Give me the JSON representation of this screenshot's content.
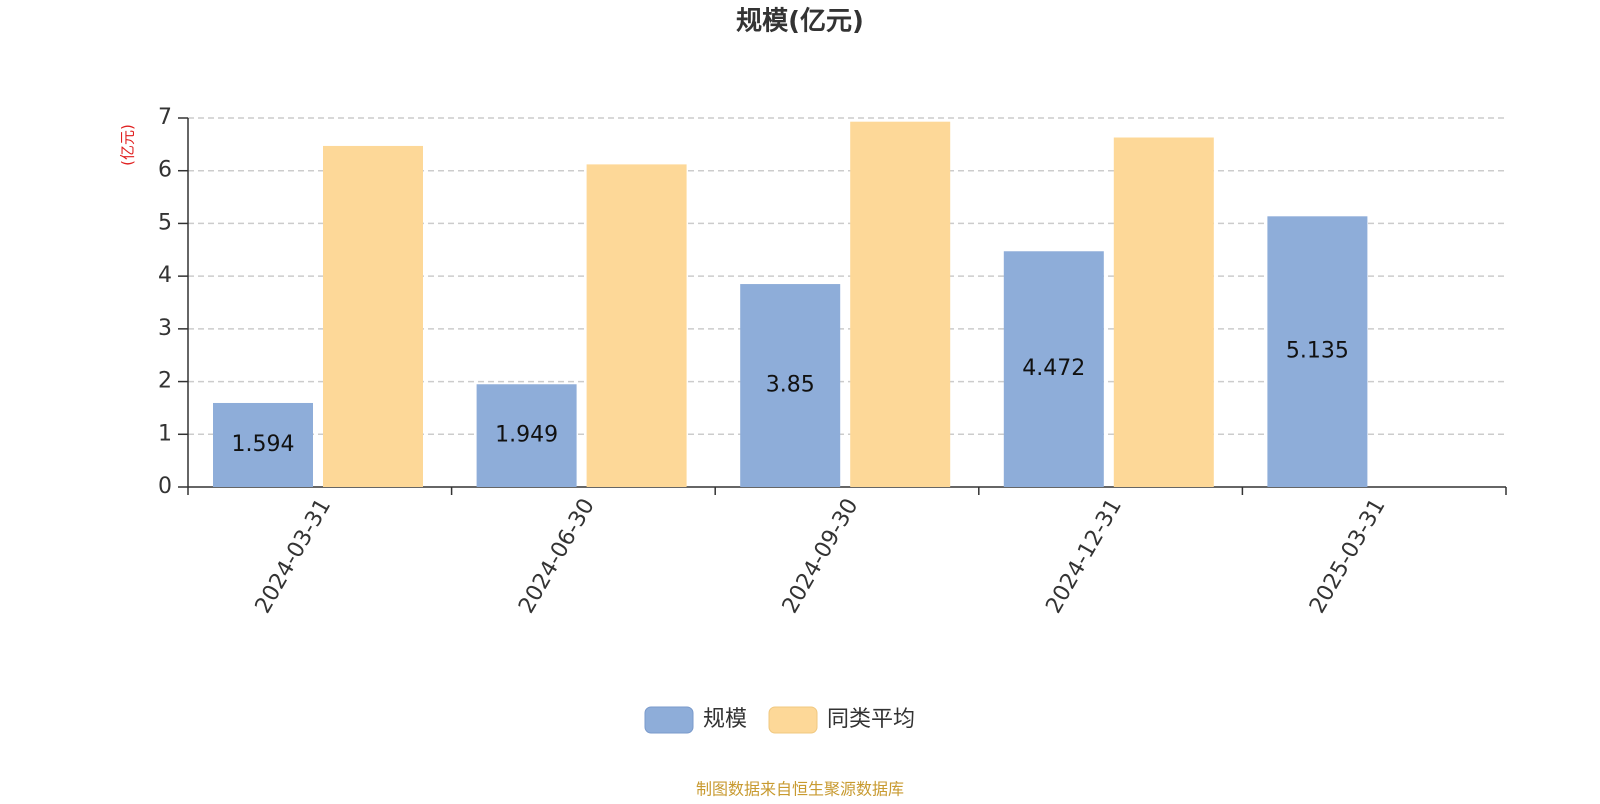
{
  "chart_data": {
    "type": "bar",
    "title": "规模(亿元)",
    "y_label": "(亿元)",
    "categories": [
      "2024-03-31",
      "2024-06-30",
      "2024-09-30",
      "2024-12-31",
      "2025-03-31"
    ],
    "series": [
      {
        "name": "规模",
        "color": "#8eadd9",
        "values": [
          1.594,
          1.949,
          3.85,
          4.472,
          5.135
        ]
      },
      {
        "name": "同类平均",
        "color": "#fdd898",
        "values": [
          6.47,
          6.12,
          6.93,
          6.63,
          null
        ]
      }
    ],
    "ylim": [
      0,
      7
    ],
    "yticks": [
      0,
      1,
      2,
      3,
      4,
      5,
      6,
      7
    ],
    "grid": true,
    "source": "制图数据来自恒生聚源数据库"
  }
}
